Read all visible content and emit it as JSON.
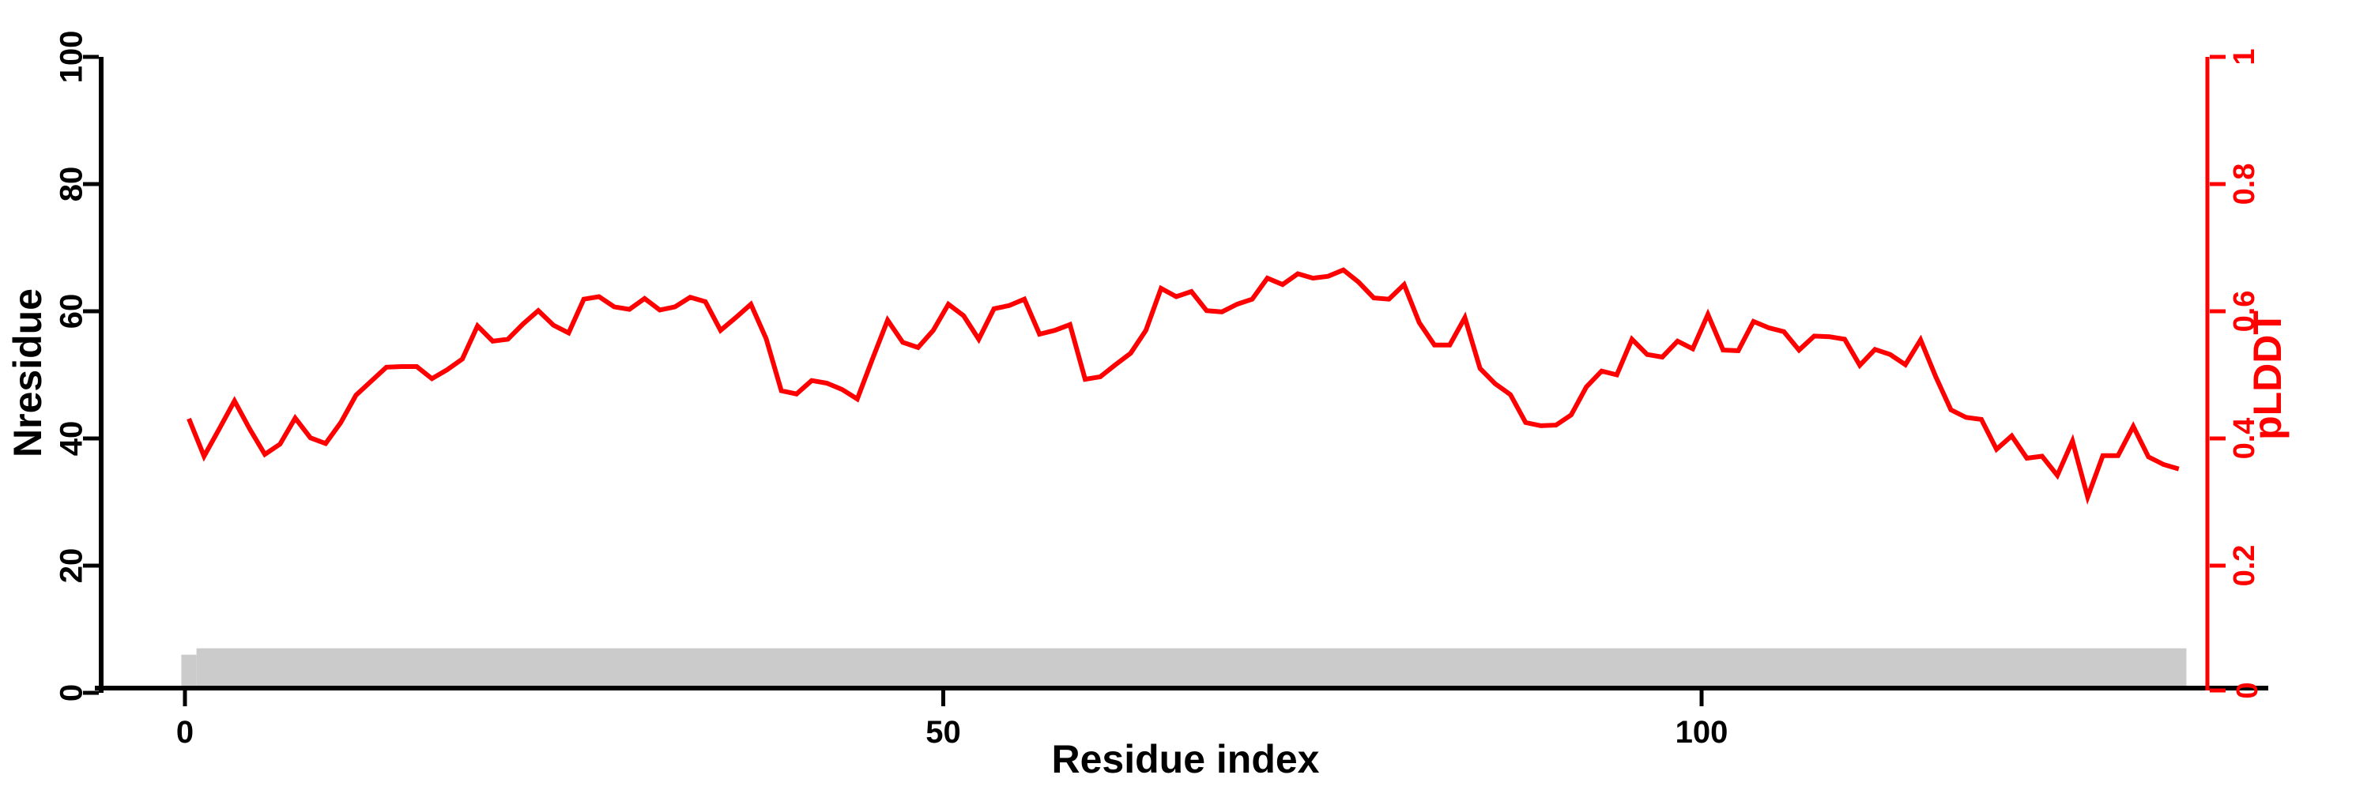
{
  "axes": {
    "x_label": "Residue index",
    "left_label": "Nresidue",
    "right_label": "pLDDT",
    "x_tick_labels": [
      "0",
      "50",
      "100"
    ],
    "left_tick_labels": [
      "0",
      "20",
      "40",
      "60",
      "80",
      "100"
    ],
    "right_tick_labels": [
      "0",
      "0.2",
      "0.4",
      "0.6",
      "0.8",
      "1"
    ]
  },
  "colors": {
    "line": "#ff0000",
    "right_axis": "#ff0000",
    "left_axis": "#000000",
    "x_axis": "#000000",
    "band": "#cbcbcb",
    "background": "#ffffff"
  },
  "chart_data": {
    "type": "line",
    "title": "",
    "xlabel": "Residue index",
    "ylabel_left": "Nresidue",
    "ylabel_right": "pLDDT",
    "grid": false,
    "legend": "none",
    "xlim": [
      0,
      137
    ],
    "ylim_left": [
      0,
      100
    ],
    "ylim_right": [
      0,
      1
    ],
    "x_ticks": [
      0,
      50,
      100
    ],
    "left_ticks": [
      0,
      20,
      40,
      60,
      80,
      100
    ],
    "right_ticks": [
      0,
      0.2,
      0.4,
      0.6,
      0.8,
      1
    ],
    "series": [
      {
        "name": "pLDDT",
        "type": "line",
        "axis": "right",
        "color": "#ff0000",
        "x_start": 1,
        "x_step": 1,
        "values": [
          0.431,
          0.372,
          0.415,
          0.459,
          0.415,
          0.375,
          0.391,
          0.432,
          0.401,
          0.392,
          0.425,
          0.468,
          0.49,
          0.512,
          0.513,
          0.513,
          0.494,
          0.508,
          0.525,
          0.577,
          0.553,
          0.556,
          0.58,
          0.601,
          0.578,
          0.566,
          0.619,
          0.623,
          0.607,
          0.603,
          0.62,
          0.602,
          0.607,
          0.622,
          0.615,
          0.57,
          0.59,
          0.611,
          0.557,
          0.475,
          0.47,
          0.491,
          0.487,
          0.477,
          0.462,
          0.525,
          0.586,
          0.551,
          0.543,
          0.57,
          0.611,
          0.593,
          0.556,
          0.604,
          0.609,
          0.619,
          0.564,
          0.57,
          0.579,
          0.493,
          0.497,
          0.516,
          0.534,
          0.57,
          0.636,
          0.623,
          0.631,
          0.601,
          0.599,
          0.611,
          0.619,
          0.652,
          0.642,
          0.659,
          0.652,
          0.655,
          0.665,
          0.646,
          0.621,
          0.619,
          0.642,
          0.582,
          0.547,
          0.547,
          0.59,
          0.51,
          0.486,
          0.469,
          0.425,
          0.42,
          0.421,
          0.437,
          0.481,
          0.506,
          0.5,
          0.556,
          0.532,
          0.528,
          0.553,
          0.541,
          0.595,
          0.539,
          0.538,
          0.584,
          0.574,
          0.568,
          0.539,
          0.561,
          0.56,
          0.556,
          0.515,
          0.54,
          0.532,
          0.516,
          0.555,
          0.497,
          0.445,
          0.433,
          0.43,
          0.383,
          0.404,
          0.369,
          0.372,
          0.342,
          0.396,
          0.308,
          0.373,
          0.373,
          0.419,
          0.371,
          0.359,
          0.352
        ]
      },
      {
        "name": "Nresidue",
        "type": "area",
        "axis": "left",
        "color": "#cbcbcb",
        "segments": [
          {
            "x0": 0.5,
            "x1": 1.5,
            "value": 6
          },
          {
            "x0": 1.5,
            "x1": 132.5,
            "value": 7
          }
        ]
      }
    ]
  }
}
